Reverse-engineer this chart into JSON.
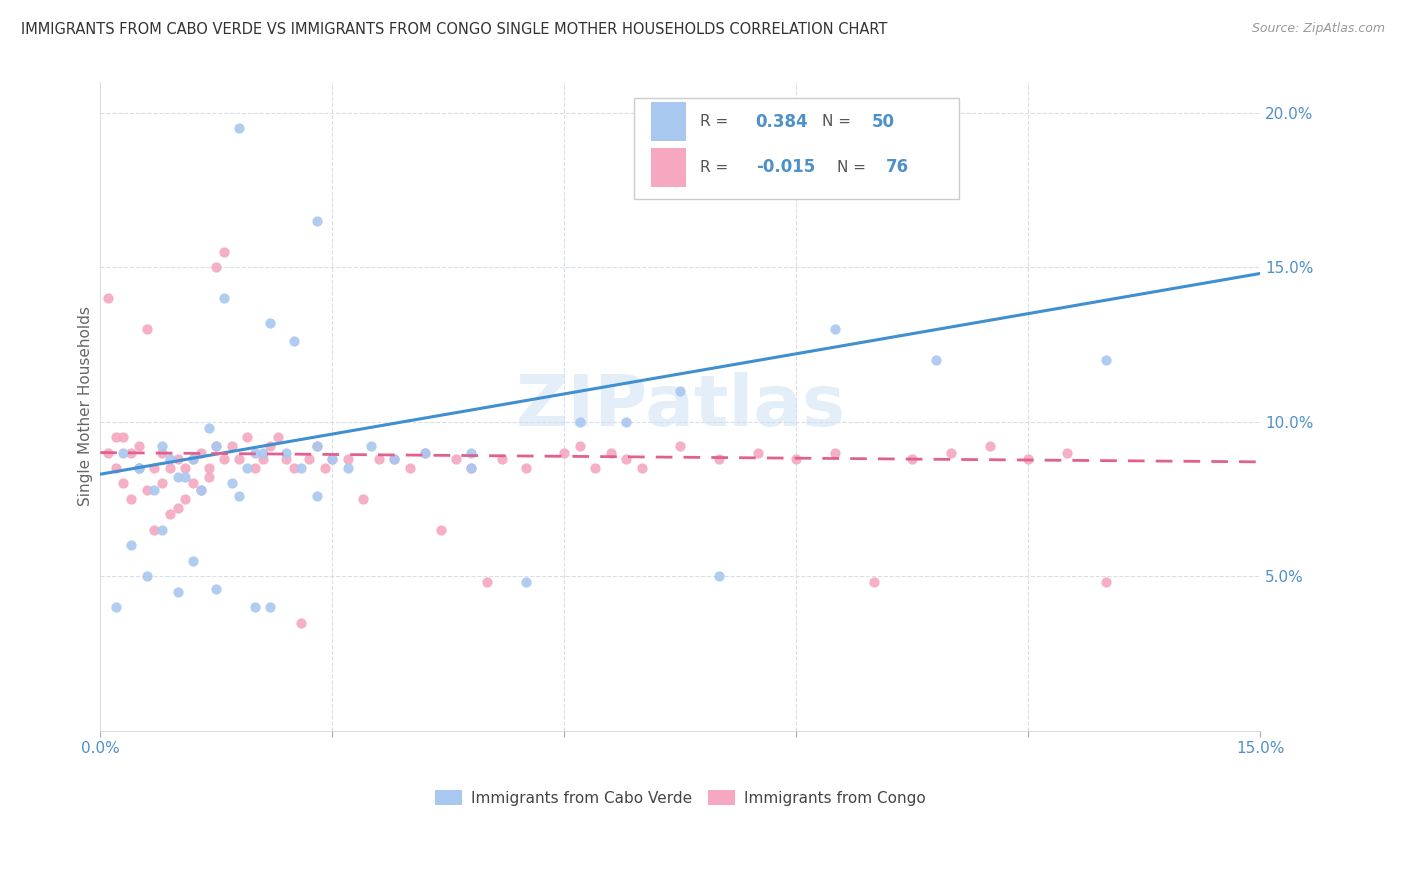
{
  "title": "IMMIGRANTS FROM CABO VERDE VS IMMIGRANTS FROM CONGO SINGLE MOTHER HOUSEHOLDS CORRELATION CHART",
  "source": "Source: ZipAtlas.com",
  "ylabel": "Single Mother Households",
  "xlim": [
    0.0,
    0.15
  ],
  "ylim": [
    0.0,
    0.21
  ],
  "color_blue": "#a8c8f0",
  "color_pink": "#f5a8c0",
  "color_blue_line": "#4090d0",
  "color_pink_line": "#e06090",
  "color_grid": "#d8dde8",
  "color_tick": "#5090c8",
  "watermark": "ZIPatlas",
  "cabo_verde_pts_x": [
    0.018,
    0.028,
    0.048,
    0.095,
    0.108,
    0.13,
    0.003,
    0.005,
    0.008,
    0.01,
    0.012,
    0.014,
    0.016,
    0.02,
    0.022,
    0.025,
    0.028,
    0.03,
    0.032,
    0.035,
    0.038,
    0.042,
    0.048,
    0.055,
    0.062,
    0.068,
    0.075,
    0.08,
    0.002,
    0.004,
    0.006,
    0.008,
    0.01,
    0.012,
    0.015,
    0.018,
    0.02,
    0.022,
    0.024,
    0.026,
    0.028,
    0.005,
    0.007,
    0.009,
    0.011,
    0.013,
    0.015,
    0.017,
    0.019,
    0.021
  ],
  "cabo_verde_pts_y": [
    0.195,
    0.165,
    0.09,
    0.13,
    0.12,
    0.12,
    0.09,
    0.085,
    0.092,
    0.082,
    0.088,
    0.098,
    0.14,
    0.09,
    0.132,
    0.126,
    0.092,
    0.088,
    0.085,
    0.092,
    0.088,
    0.09,
    0.085,
    0.048,
    0.1,
    0.1,
    0.11,
    0.05,
    0.04,
    0.06,
    0.05,
    0.065,
    0.045,
    0.055,
    0.046,
    0.076,
    0.04,
    0.04,
    0.09,
    0.085,
    0.076,
    0.085,
    0.078,
    0.088,
    0.082,
    0.078,
    0.092,
    0.08,
    0.085,
    0.09
  ],
  "congo_pts_x": [
    0.001,
    0.001,
    0.002,
    0.002,
    0.003,
    0.003,
    0.004,
    0.004,
    0.005,
    0.005,
    0.006,
    0.006,
    0.007,
    0.007,
    0.008,
    0.008,
    0.009,
    0.009,
    0.01,
    0.01,
    0.011,
    0.011,
    0.012,
    0.012,
    0.013,
    0.013,
    0.014,
    0.014,
    0.015,
    0.015,
    0.016,
    0.016,
    0.017,
    0.018,
    0.019,
    0.02,
    0.021,
    0.022,
    0.023,
    0.024,
    0.025,
    0.026,
    0.027,
    0.028,
    0.029,
    0.03,
    0.032,
    0.034,
    0.036,
    0.038,
    0.04,
    0.042,
    0.044,
    0.046,
    0.048,
    0.05,
    0.052,
    0.055,
    0.06,
    0.062,
    0.064,
    0.066,
    0.068,
    0.07,
    0.075,
    0.08,
    0.085,
    0.09,
    0.095,
    0.1,
    0.105,
    0.11,
    0.115,
    0.12,
    0.125,
    0.13
  ],
  "congo_pts_y": [
    0.09,
    0.14,
    0.085,
    0.095,
    0.08,
    0.095,
    0.075,
    0.09,
    0.085,
    0.092,
    0.078,
    0.13,
    0.065,
    0.085,
    0.08,
    0.09,
    0.07,
    0.085,
    0.072,
    0.088,
    0.075,
    0.085,
    0.08,
    0.088,
    0.078,
    0.09,
    0.082,
    0.085,
    0.092,
    0.15,
    0.088,
    0.155,
    0.092,
    0.088,
    0.095,
    0.085,
    0.088,
    0.092,
    0.095,
    0.088,
    0.085,
    0.035,
    0.088,
    0.092,
    0.085,
    0.088,
    0.088,
    0.075,
    0.088,
    0.088,
    0.085,
    0.09,
    0.065,
    0.088,
    0.085,
    0.048,
    0.088,
    0.085,
    0.09,
    0.092,
    0.085,
    0.09,
    0.088,
    0.085,
    0.092,
    0.088,
    0.09,
    0.088,
    0.09,
    0.048,
    0.088,
    0.09,
    0.092,
    0.088,
    0.09,
    0.048
  ],
  "cv_line_x": [
    0.0,
    0.15
  ],
  "cv_line_y": [
    0.083,
    0.148
  ],
  "cg_line_x": [
    0.0,
    0.15
  ],
  "cg_line_y": [
    0.09,
    0.087
  ]
}
